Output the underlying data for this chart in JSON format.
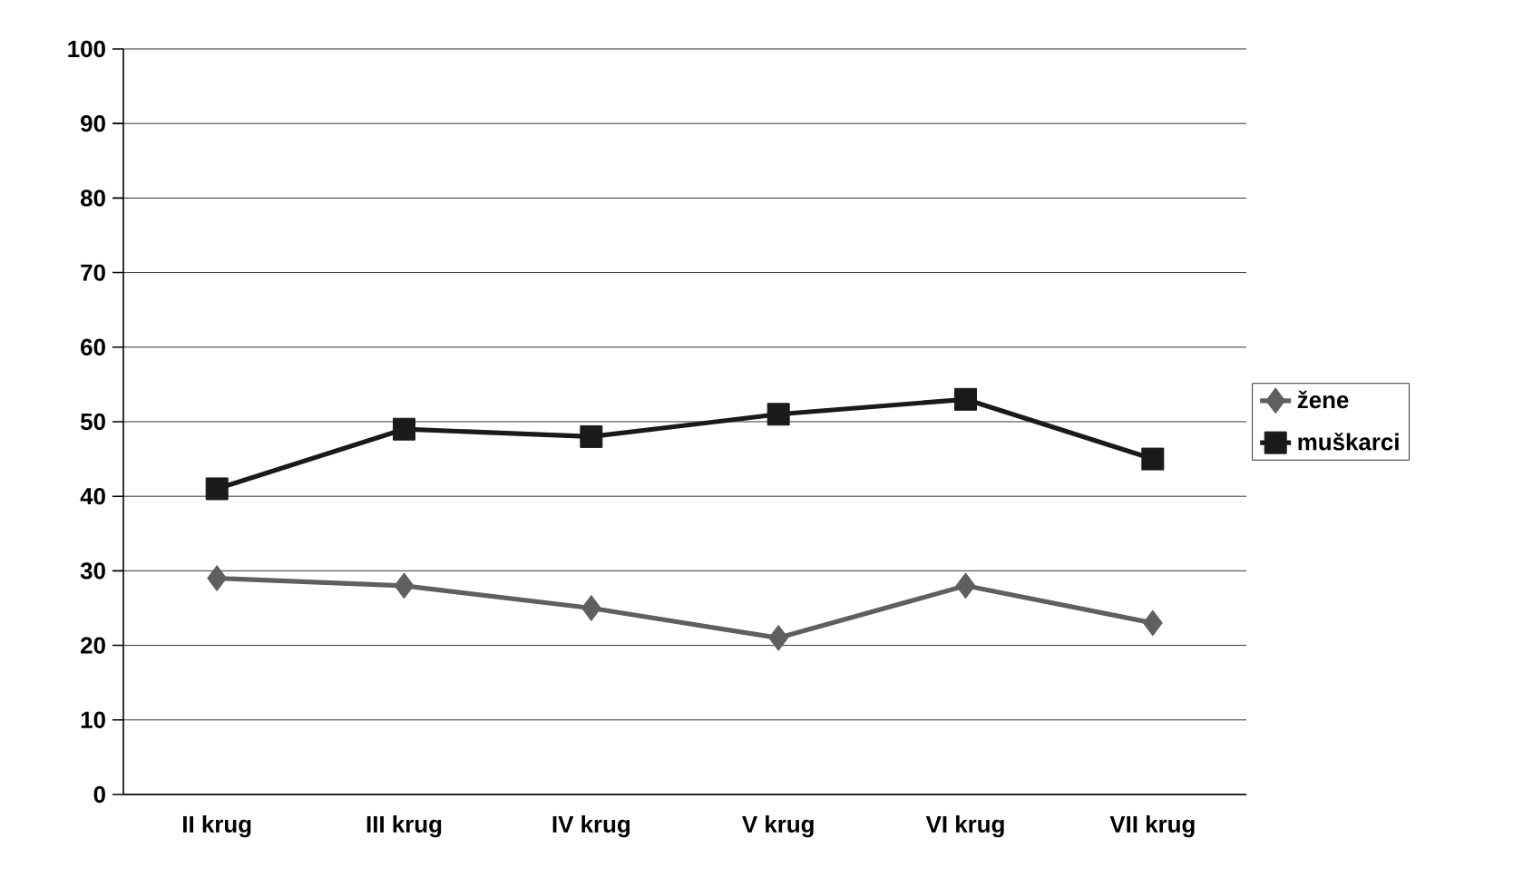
{
  "chart_data": {
    "type": "line",
    "categories": [
      "II krug",
      "III krug",
      "IV krug",
      "V krug",
      "VI krug",
      "VII krug"
    ],
    "series": [
      {
        "name": "žene",
        "color": "#5f5f5f",
        "marker": "diamond",
        "values": [
          29,
          28,
          25,
          21,
          28,
          23
        ]
      },
      {
        "name": "muškarci",
        "color": "#1a1a1a",
        "marker": "square",
        "values": [
          41,
          49,
          48,
          51,
          53,
          45
        ]
      }
    ],
    "ylim": [
      0,
      100
    ],
    "yticks": [
      0,
      10,
      20,
      30,
      40,
      50,
      60,
      70,
      80,
      90,
      100
    ],
    "grid": "y",
    "legend": "right",
    "line_style": "solid"
  }
}
